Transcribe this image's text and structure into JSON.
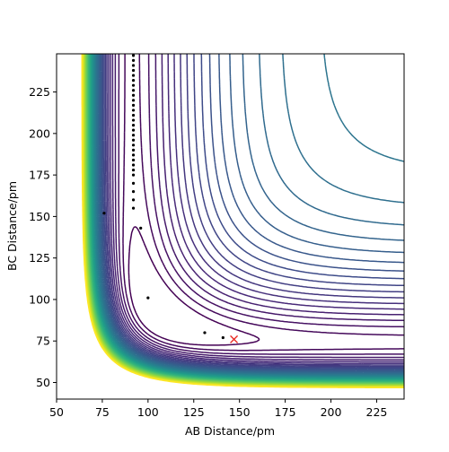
{
  "chart_data": {
    "type": "scatter",
    "x_label": "AB Distance/pm",
    "y_label": "BC Distance/pm",
    "xlim": [
      50,
      240
    ],
    "ylim": [
      40,
      248
    ],
    "xticks": [
      50,
      75,
      100,
      125,
      150,
      175,
      200,
      225
    ],
    "yticks": [
      50,
      75,
      100,
      125,
      150,
      175,
      200,
      225
    ],
    "series": [
      {
        "color": "#000000",
        "marker": "dot",
        "x": [
          92,
          92,
          92,
          92,
          92,
          92,
          92,
          92,
          92,
          92,
          92,
          92,
          92,
          92,
          92,
          92,
          92,
          92,
          92,
          92,
          92,
          92,
          92,
          92,
          92,
          92,
          92,
          92,
          92,
          96,
          76,
          100,
          131,
          141
        ],
        "y": [
          155,
          160,
          165,
          170,
          175,
          178,
          181,
          184,
          187,
          190,
          193,
          196,
          199,
          202,
          205,
          208,
          211,
          214,
          217,
          220,
          223,
          226,
          229,
          232,
          235,
          238,
          241,
          244,
          247,
          143,
          152,
          101,
          80,
          77
        ]
      },
      {
        "color": "#e8261f",
        "marker": "x",
        "x": [
          147
        ],
        "y": [
          76
        ]
      }
    ]
  }
}
